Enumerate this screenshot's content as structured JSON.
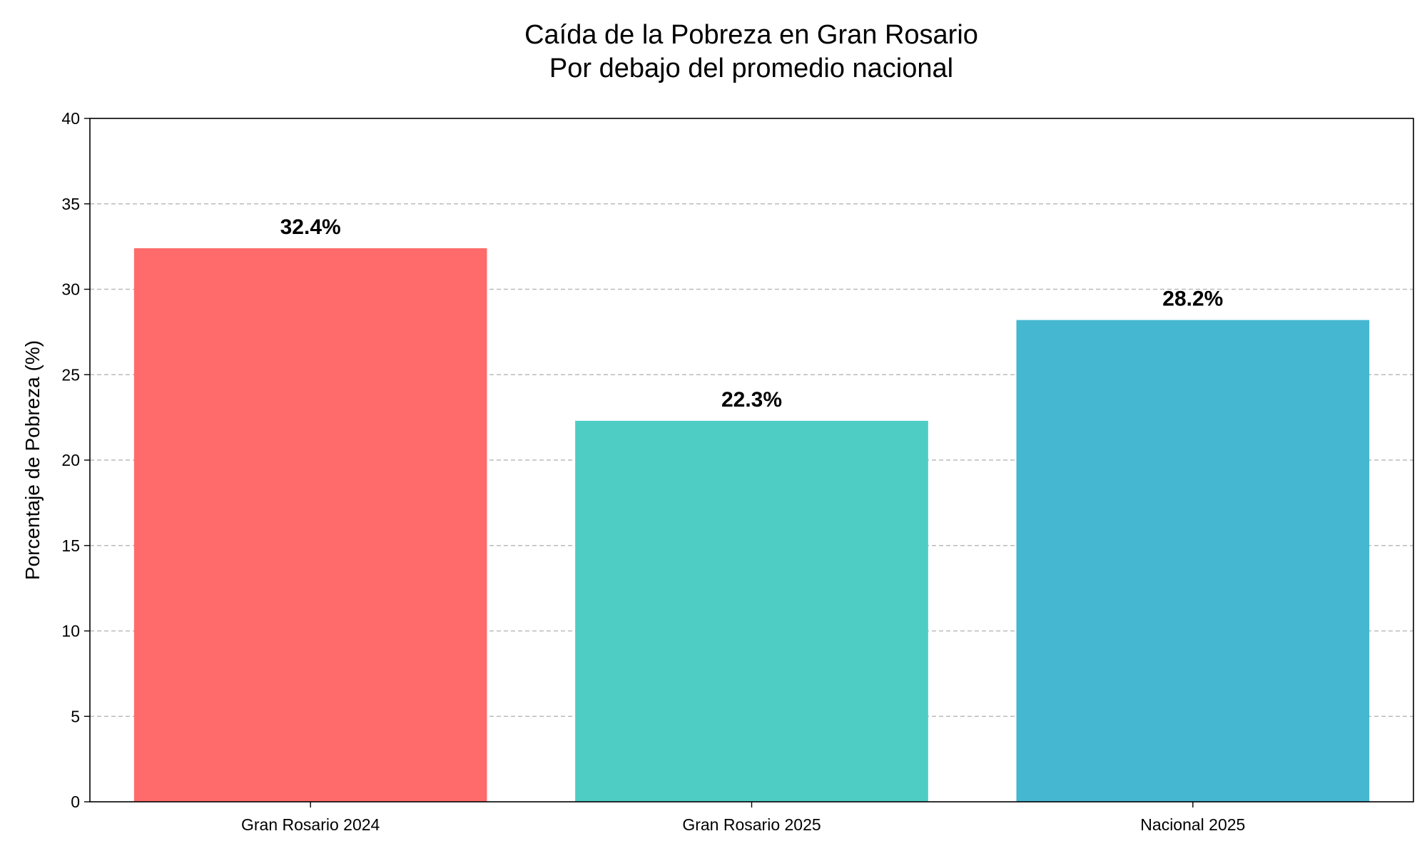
{
  "chart_data": {
    "type": "bar",
    "title": "Caída de la Pobreza en Gran Rosario",
    "subtitle": "Por debajo del promedio nacional",
    "xlabel": "",
    "ylabel": "Porcentaje de Pobreza (%)",
    "categories": [
      "Gran Rosario 2024",
      "Gran Rosario 2025",
      "Nacional 2025"
    ],
    "values": [
      32.4,
      22.3,
      28.2
    ],
    "data_labels": [
      "32.4%",
      "22.3%",
      "28.2%"
    ],
    "colors": [
      "#FF6B6B",
      "#4ECDC4",
      "#45B7D1"
    ],
    "ylim": [
      0,
      40
    ],
    "yticks": [
      0,
      5,
      10,
      15,
      20,
      25,
      30,
      35,
      40
    ],
    "ytick_labels": [
      "0",
      "5",
      "10",
      "15",
      "20",
      "25",
      "30",
      "35",
      "40"
    ],
    "grid": "y-dashed",
    "legend": "none"
  }
}
